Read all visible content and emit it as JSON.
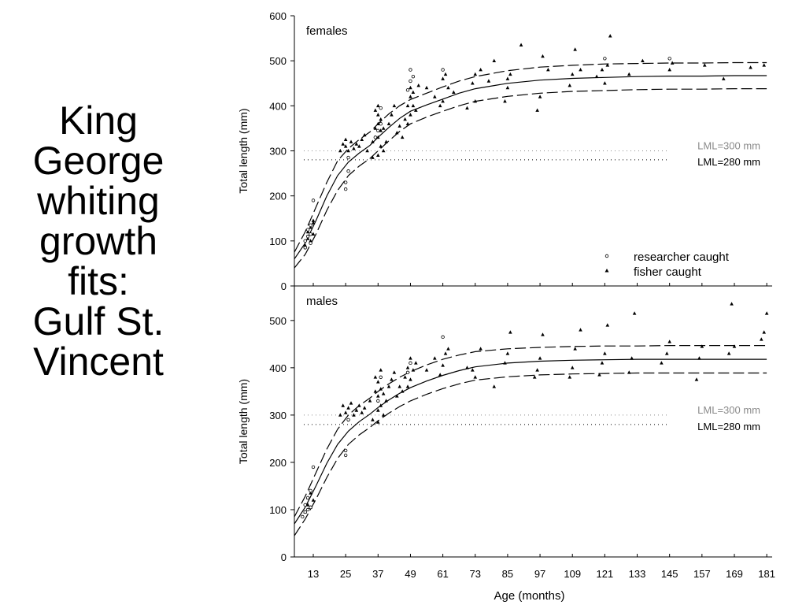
{
  "slide": {
    "title_lines": [
      "King",
      "George",
      "whiting",
      "growth",
      "fits:",
      "Gulf St.",
      "Vincent"
    ]
  },
  "colors": {
    "ink": "#000000",
    "lml_300": "#8a8a8a",
    "lml_280": "#000000",
    "background": "#ffffff"
  },
  "chart_data": [
    {
      "type": "scatter",
      "panel_label": "females",
      "xlabel": "",
      "ylabel": "Total length (mm)",
      "xlim": [
        6,
        183
      ],
      "ylim": [
        0,
        600
      ],
      "yticks": [
        0,
        100,
        200,
        300,
        400,
        500,
        600
      ],
      "reference_lines": [
        {
          "label": "LML=300 mm",
          "value": 300,
          "color": "#8a8a8a"
        },
        {
          "label": "LML=280 mm",
          "value": 280,
          "color": "#000000"
        }
      ],
      "legend": {
        "position": "bottom-right",
        "entries": [
          {
            "label": "researcher caught",
            "marker": "open-circle"
          },
          {
            "label": "fisher caught",
            "marker": "filled-triangle"
          }
        ]
      },
      "fitted_curves": [
        {
          "style": "solid",
          "x": [
            6,
            10,
            14,
            18,
            22,
            26,
            30,
            34,
            37,
            41,
            45,
            49,
            55,
            61,
            67,
            73,
            85,
            97,
            109,
            121,
            133,
            145,
            157,
            169,
            181
          ],
          "y": [
            60,
            95,
            145,
            200,
            245,
            275,
            295,
            312,
            330,
            352,
            372,
            388,
            402,
            415,
            428,
            438,
            450,
            457,
            461,
            463,
            465,
            466,
            466,
            467,
            467
          ]
        },
        {
          "style": "dashed",
          "x": [
            6,
            10,
            14,
            18,
            22,
            26,
            30,
            34,
            37,
            41,
            45,
            49,
            55,
            61,
            67,
            73,
            85,
            97,
            109,
            121,
            133,
            145,
            157,
            169,
            181
          ],
          "y": [
            75,
            120,
            175,
            230,
            278,
            305,
            325,
            342,
            360,
            382,
            400,
            414,
            428,
            442,
            455,
            465,
            478,
            486,
            490,
            493,
            494,
            495,
            495,
            496,
            496
          ]
        },
        {
          "style": "dashed",
          "x": [
            6,
            10,
            14,
            18,
            22,
            26,
            30,
            34,
            37,
            41,
            45,
            49,
            55,
            61,
            67,
            73,
            85,
            97,
            109,
            121,
            133,
            145,
            157,
            169,
            181
          ],
          "y": [
            40,
            70,
            115,
            168,
            212,
            245,
            266,
            283,
            300,
            322,
            343,
            360,
            375,
            388,
            400,
            410,
            421,
            428,
            432,
            434,
            436,
            437,
            437,
            438,
            438
          ]
        }
      ],
      "researcher_caught": {
        "x": [
          10,
          10,
          11,
          11,
          12,
          12,
          12,
          13,
          25,
          25,
          26,
          26,
          36,
          37,
          38,
          38,
          48,
          49,
          49,
          50,
          61,
          121,
          145
        ],
        "y": [
          85,
          100,
          110,
          125,
          95,
          115,
          135,
          190,
          215,
          230,
          255,
          285,
          330,
          345,
          360,
          395,
          435,
          455,
          480,
          465,
          480,
          505,
          505
        ]
      },
      "fisher_caught": {
        "x": [
          10,
          11,
          11,
          12,
          12,
          13,
          13,
          13,
          23,
          24,
          25,
          25,
          26,
          27,
          28,
          29,
          30,
          31,
          32,
          33,
          35,
          35,
          36,
          36,
          37,
          37,
          37,
          37,
          37,
          38,
          38,
          38,
          39,
          39,
          40,
          41,
          42,
          43,
          44,
          45,
          46,
          47,
          48,
          48,
          49,
          49,
          49,
          50,
          50,
          51,
          52,
          55,
          58,
          60,
          61,
          61,
          62,
          63,
          65,
          70,
          72,
          73,
          73,
          75,
          78,
          80,
          84,
          85,
          85,
          86,
          90,
          96,
          97,
          98,
          100,
          108,
          109,
          110,
          112,
          118,
          120,
          121,
          122,
          123,
          130,
          135,
          145,
          146,
          158,
          165,
          175,
          180
        ],
        "y": [
          90,
          105,
          120,
          100,
          130,
          115,
          140,
          145,
          300,
          315,
          310,
          325,
          300,
          320,
          305,
          315,
          310,
          325,
          335,
          300,
          285,
          320,
          350,
          390,
          290,
          330,
          360,
          380,
          400,
          310,
          345,
          370,
          300,
          350,
          320,
          360,
          380,
          400,
          340,
          355,
          330,
          370,
          400,
          360,
          380,
          420,
          440,
          400,
          430,
          390,
          445,
          440,
          420,
          400,
          410,
          460,
          470,
          440,
          430,
          395,
          450,
          410,
          470,
          480,
          455,
          500,
          410,
          440,
          460,
          470,
          535,
          390,
          420,
          510,
          480,
          445,
          470,
          525,
          480,
          465,
          480,
          450,
          490,
          555,
          470,
          500,
          480,
          495,
          490,
          460,
          485,
          490
        ]
      }
    },
    {
      "type": "scatter",
      "panel_label": "males",
      "xlabel": "Age (months)",
      "ylabel": "Total length (mm)",
      "xlim": [
        6,
        183
      ],
      "ylim": [
        0,
        550
      ],
      "xticks": [
        13,
        25,
        37,
        49,
        61,
        73,
        85,
        97,
        109,
        121,
        133,
        145,
        157,
        169,
        181
      ],
      "yticks": [
        0,
        100,
        200,
        300,
        400,
        500
      ],
      "reference_lines": [
        {
          "label": "LML=300 mm",
          "value": 300,
          "color": "#8a8a8a"
        },
        {
          "label": "LML=280 mm",
          "value": 280,
          "color": "#000000"
        }
      ],
      "fitted_curves": [
        {
          "style": "solid",
          "x": [
            6,
            10,
            14,
            18,
            22,
            26,
            30,
            34,
            37,
            41,
            45,
            49,
            55,
            61,
            67,
            73,
            85,
            97,
            109,
            121,
            133,
            145,
            157,
            169,
            181
          ],
          "y": [
            70,
            105,
            150,
            198,
            238,
            266,
            286,
            302,
            316,
            332,
            346,
            358,
            372,
            384,
            394,
            402,
            410,
            414,
            416,
            417,
            418,
            418,
            418,
            418,
            418
          ]
        },
        {
          "style": "dashed",
          "x": [
            6,
            10,
            14,
            18,
            22,
            26,
            30,
            34,
            37,
            41,
            45,
            49,
            55,
            61,
            67,
            73,
            85,
            97,
            109,
            121,
            133,
            145,
            157,
            169,
            181
          ],
          "y": [
            85,
            128,
            178,
            228,
            270,
            300,
            320,
            336,
            350,
            366,
            380,
            392,
            406,
            418,
            427,
            434,
            440,
            443,
            445,
            446,
            446,
            447,
            447,
            447,
            447
          ]
        },
        {
          "style": "dashed",
          "x": [
            6,
            10,
            14,
            18,
            22,
            26,
            30,
            34,
            37,
            41,
            45,
            49,
            55,
            61,
            67,
            73,
            85,
            97,
            109,
            121,
            133,
            145,
            157,
            169,
            181
          ],
          "y": [
            45,
            80,
            122,
            168,
            208,
            238,
            258,
            274,
            288,
            304,
            318,
            330,
            344,
            356,
            366,
            374,
            381,
            385,
            387,
            388,
            389,
            389,
            389,
            389,
            389
          ]
        }
      ],
      "researcher_caught": {
        "x": [
          9,
          10,
          10,
          11,
          11,
          12,
          12,
          13,
          25,
          25,
          26,
          37,
          38,
          48,
          49,
          61
        ],
        "y": [
          85,
          95,
          110,
          100,
          125,
          105,
          140,
          190,
          215,
          225,
          290,
          330,
          380,
          390,
          410,
          465
        ]
      },
      "fisher_caught": {
        "x": [
          10,
          11,
          11,
          12,
          12,
          13,
          23,
          24,
          25,
          26,
          27,
          28,
          29,
          30,
          31,
          32,
          34,
          35,
          36,
          36,
          37,
          37,
          37,
          37,
          38,
          38,
          38,
          39,
          39,
          40,
          41,
          42,
          43,
          44,
          45,
          46,
          47,
          48,
          48,
          49,
          49,
          50,
          51,
          55,
          58,
          60,
          61,
          62,
          63,
          70,
          72,
          73,
          75,
          80,
          84,
          85,
          86,
          95,
          96,
          97,
          98,
          108,
          109,
          110,
          112,
          119,
          120,
          121,
          122,
          130,
          131,
          132,
          142,
          144,
          145,
          155,
          156,
          157,
          167,
          168,
          169,
          179,
          180,
          181
        ],
        "y": [
          95,
          110,
          125,
          105,
          135,
          120,
          300,
          320,
          305,
          315,
          325,
          300,
          310,
          320,
          305,
          315,
          330,
          290,
          350,
          380,
          285,
          310,
          340,
          370,
          320,
          355,
          395,
          300,
          345,
          330,
          360,
          375,
          390,
          340,
          360,
          350,
          380,
          400,
          360,
          375,
          420,
          395,
          410,
          395,
          420,
          385,
          405,
          430,
          440,
          400,
          395,
          380,
          440,
          360,
          410,
          430,
          475,
          380,
          395,
          420,
          470,
          380,
          400,
          440,
          480,
          385,
          410,
          430,
          490,
          390,
          420,
          515,
          410,
          430,
          455,
          375,
          420,
          445,
          430,
          535,
          445,
          460,
          475,
          515
        ]
      }
    }
  ]
}
